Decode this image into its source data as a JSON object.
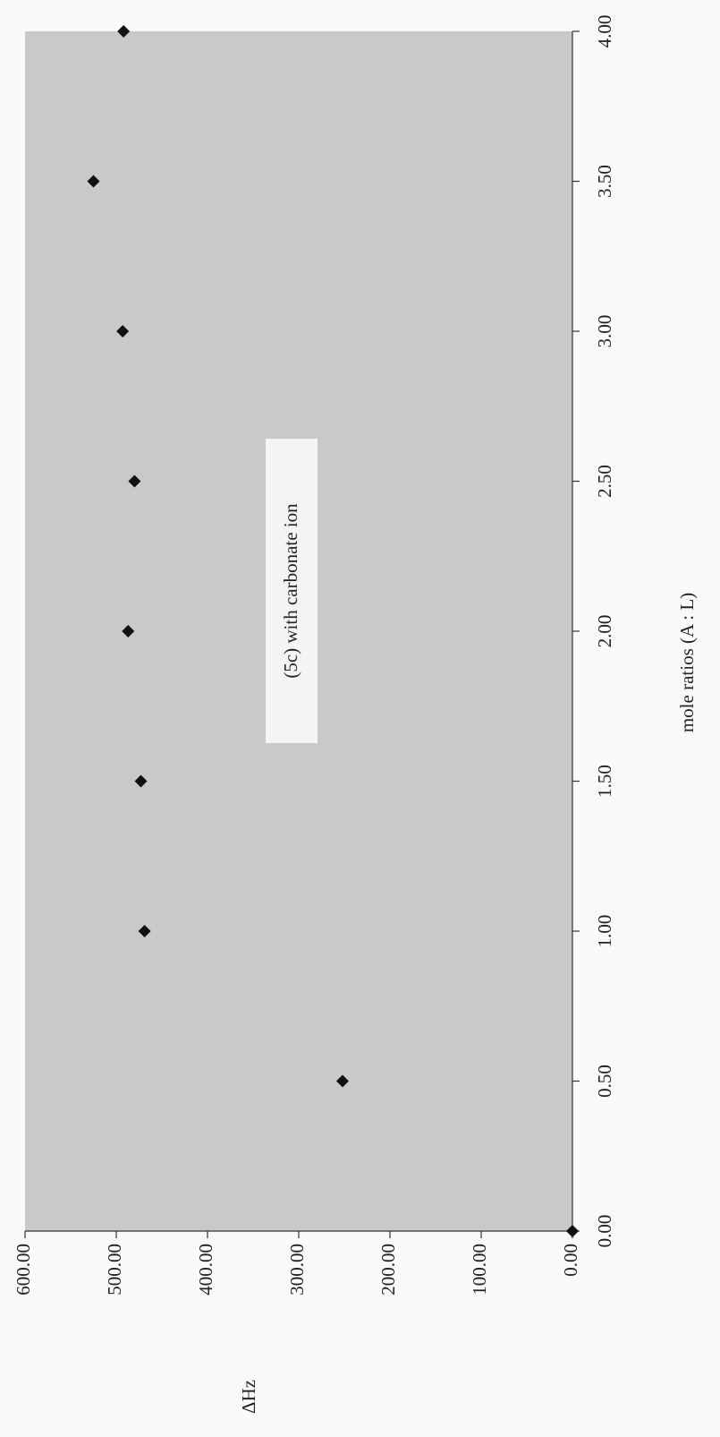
{
  "chart_data": {
    "type": "scatter",
    "x_label": "mole ratios  (A : L)",
    "y_label": "ΔHz",
    "annotation": "(5c) with carbonate ion",
    "x": [
      0,
      0.5,
      1.0,
      1.5,
      2.0,
      2.5,
      3.0,
      3.5,
      4.0
    ],
    "series": [
      {
        "name": "(5c) with carbonate ion",
        "color": "#111111",
        "values": [
          0,
          252,
          469,
          473,
          487,
          480,
          493,
          525,
          492
        ]
      }
    ],
    "xlim": [
      0,
      4
    ],
    "ylim": [
      0,
      600
    ],
    "xticks": [
      {
        "value": 0,
        "label": "0.00"
      },
      {
        "value": 0.5,
        "label": "0.50"
      },
      {
        "value": 1,
        "label": "1.00"
      },
      {
        "value": 1.5,
        "label": "1.50"
      },
      {
        "value": 2,
        "label": "2.00"
      },
      {
        "value": 2.5,
        "label": "2.50"
      },
      {
        "value": 3,
        "label": "3.00"
      },
      {
        "value": 3.5,
        "label": "3.50"
      },
      {
        "value": 4,
        "label": "4.00"
      }
    ],
    "yticks": [
      {
        "value": 0,
        "label": "0.00"
      },
      {
        "value": 100,
        "label": "100.00"
      },
      {
        "value": 200,
        "label": "200.00"
      },
      {
        "value": 300,
        "label": "300.00"
      },
      {
        "value": 400,
        "label": "400.00"
      },
      {
        "value": 500,
        "label": "500.00"
      },
      {
        "value": 600,
        "label": "600.00"
      }
    ],
    "grid": false
  }
}
